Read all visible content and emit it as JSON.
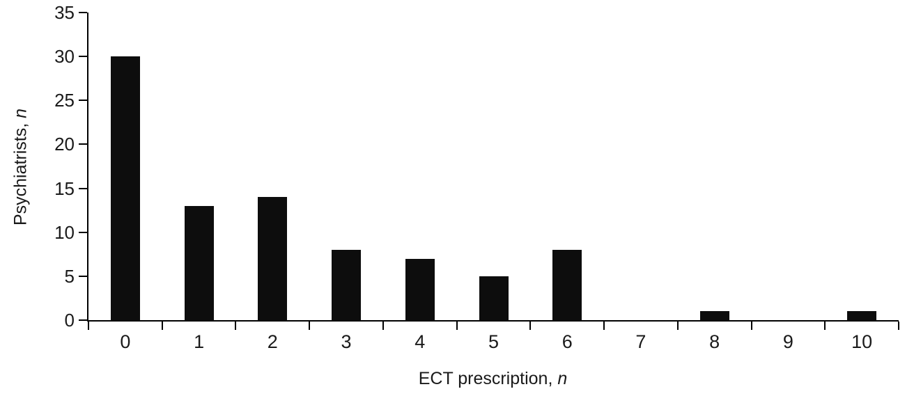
{
  "chart_data": {
    "type": "bar",
    "title": "",
    "xlabel": "ECT prescription, ",
    "xlabel_italic": "n",
    "ylabel": "Psychiatrists, ",
    "ylabel_italic": "n",
    "categories": [
      "0",
      "1",
      "2",
      "3",
      "4",
      "5",
      "6",
      "7",
      "8",
      "9",
      "10"
    ],
    "values": [
      30,
      13,
      14,
      8,
      7,
      5,
      8,
      0,
      1,
      0,
      1
    ],
    "ylim": [
      0,
      35
    ],
    "yticks": [
      0,
      5,
      10,
      15,
      20,
      25,
      30,
      35
    ],
    "bar_color": "#0d0d0d",
    "axis_color": "#000000",
    "grid": false,
    "legend": false
  }
}
